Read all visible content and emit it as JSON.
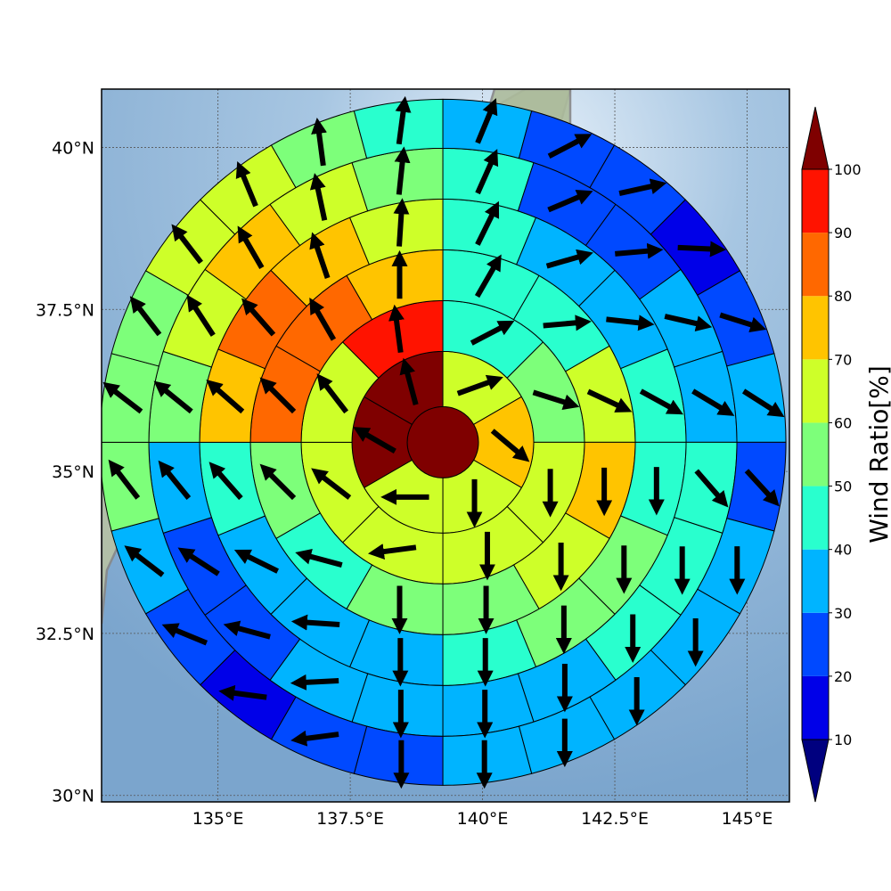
{
  "map": {
    "lon_range": [
      132.8,
      145.8
    ],
    "lat_range": [
      29.9,
      40.9
    ],
    "center": [
      139.25,
      35.45
    ],
    "lon_ticks": [
      {
        "value": 135,
        "label": "135°E"
      },
      {
        "value": 137.5,
        "label": "137.5°E"
      },
      {
        "value": 140,
        "label": "140°E"
      },
      {
        "value": 142.5,
        "label": "142.5°E"
      },
      {
        "value": 145,
        "label": "145°E"
      }
    ],
    "lat_ticks": [
      {
        "value": 30,
        "label": "30°N"
      },
      {
        "value": 32.5,
        "label": "32.5°N"
      },
      {
        "value": 35,
        "label": "35°N"
      },
      {
        "value": 37.5,
        "label": "37.5°N"
      },
      {
        "value": 40,
        "label": "40°N"
      }
    ]
  },
  "colorbar": {
    "title": "Wind Ratio[%]",
    "levels": [
      "10",
      "20",
      "30",
      "40",
      "50",
      "60",
      "70",
      "80",
      "90",
      "100"
    ],
    "colors": [
      "#00007f",
      "#0000e8",
      "#0049ff",
      "#00b4ff",
      "#29ffce",
      "#7dff7a",
      "#ceff29",
      "#ffc400",
      "#ff6800",
      "#ff1300",
      "#7f0000"
    ]
  },
  "chart_data": {
    "type": "heatmap",
    "description_of_sectors": "polar grid of wind ratio bands with wind direction arrows",
    "rings": [
      {
        "sectors": 1,
        "values": [
          100
        ]
      },
      {
        "sectors": 6,
        "values": [
          60,
          70,
          60,
          60,
          100,
          100
        ]
      },
      {
        "sectors": 8,
        "values": [
          40,
          50,
          60,
          60,
          60,
          60,
          60,
          90
        ]
      },
      {
        "sectors": 12,
        "values": [
          40,
          40,
          60,
          70,
          60,
          50,
          50,
          40,
          50,
          80,
          80,
          70
        ]
      },
      {
        "sectors": 16,
        "values": [
          40,
          30,
          30,
          40,
          40,
          50,
          50,
          40,
          30,
          30,
          30,
          40,
          70,
          80,
          70,
          60
        ]
      },
      {
        "sectors": 20,
        "values": [
          40,
          20,
          20,
          30,
          30,
          40,
          40,
          40,
          30,
          30,
          30,
          30,
          20,
          20,
          30,
          50,
          60,
          70,
          60,
          50
        ]
      },
      {
        "sectors": 24,
        "values": [
          30,
          20,
          20,
          10,
          20,
          30,
          20,
          30,
          30,
          30,
          30,
          30,
          20,
          20,
          10,
          20,
          30,
          50,
          50,
          50,
          60,
          60,
          50,
          40
        ]
      }
    ]
  }
}
